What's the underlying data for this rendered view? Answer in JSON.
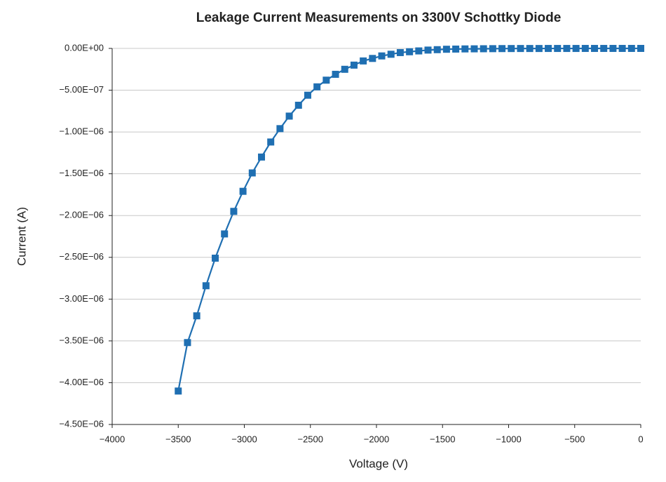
{
  "chart_data": {
    "type": "line",
    "title": "Leakage Current Measurements on 3300V Schottky Diode",
    "x_label": "Voltage (V)",
    "y_label": "Current  (A)",
    "x": [
      -3500,
      -3430,
      -3360,
      -3290,
      -3220,
      -3150,
      -3080,
      -3010,
      -2940,
      -2870,
      -2800,
      -2730,
      -2660,
      -2590,
      -2520,
      -2450,
      -2380,
      -2310,
      -2240,
      -2170,
      -2100,
      -2030,
      -1960,
      -1890,
      -1820,
      -1750,
      -1680,
      -1610,
      -1540,
      -1470,
      -1400,
      -1330,
      -1260,
      -1190,
      -1120,
      -1050,
      -980,
      -910,
      -840,
      -770,
      -700,
      -630,
      -560,
      -490,
      -420,
      -350,
      -280,
      -210,
      -140,
      -70,
      0
    ],
    "series": [
      {
        "name": "Current",
        "color": "#1f6fb2",
        "marker": "square",
        "values": [
          -4.1e-06,
          -3.52e-06,
          -3.2e-06,
          -2.84e-06,
          -2.51e-06,
          -2.22e-06,
          -1.95e-06,
          -1.71e-06,
          -1.49e-06,
          -1.3e-06,
          -1.12e-06,
          -9.6e-07,
          -8.1e-07,
          -6.8e-07,
          -5.6e-07,
          -4.6e-07,
          -3.8e-07,
          -3.1e-07,
          -2.5e-07,
          -2e-07,
          -1.5e-07,
          -1.2e-07,
          -9e-08,
          -7e-08,
          -5e-08,
          -4e-08,
          -3e-08,
          -2e-08,
          -1.5e-08,
          -1e-08,
          -8e-09,
          -6e-09,
          -5e-09,
          -4e-09,
          -3e-09,
          -2e-09,
          -1.5e-09,
          -1e-09,
          -1e-09,
          -1e-09,
          -5e-10,
          -5e-10,
          -5e-10,
          -5e-10,
          -2e-10,
          -2e-10,
          -2e-10,
          -1e-10,
          -1e-10,
          -1e-10,
          0
        ]
      }
    ],
    "xlim": [
      -4000,
      0
    ],
    "xticks": [
      {
        "value": -4000,
        "label": "−4000"
      },
      {
        "value": -3500,
        "label": "−3500"
      },
      {
        "value": -3000,
        "label": "−3000"
      },
      {
        "value": -2500,
        "label": "−2500"
      },
      {
        "value": -2000,
        "label": "−2000"
      },
      {
        "value": -1500,
        "label": "−1500"
      },
      {
        "value": -1000,
        "label": "−1000"
      },
      {
        "value": -500,
        "label": "−500"
      },
      0
    ],
    "ylim": [
      -4.5e-06,
      0
    ],
    "yticks": [
      {
        "value": 0,
        "label": "0.00E+00"
      },
      {
        "value": -5e-07,
        "label": "−5.00E−07"
      },
      {
        "value": -1e-06,
        "label": "−1.00E−06"
      },
      {
        "value": -1.5e-06,
        "label": "−1.50E−06"
      },
      {
        "value": -2e-06,
        "label": "−2.00E−06"
      },
      {
        "value": -2.5e-06,
        "label": "−2.50E−06"
      },
      {
        "value": -3e-06,
        "label": "−3.00E−06"
      },
      {
        "value": -3.5e-06,
        "label": "−3.50E−06"
      },
      {
        "value": -4e-06,
        "label": "−4.00E−06"
      },
      {
        "value": -4.5e-06,
        "label": "−4.50E−06"
      }
    ],
    "grid": true
  }
}
